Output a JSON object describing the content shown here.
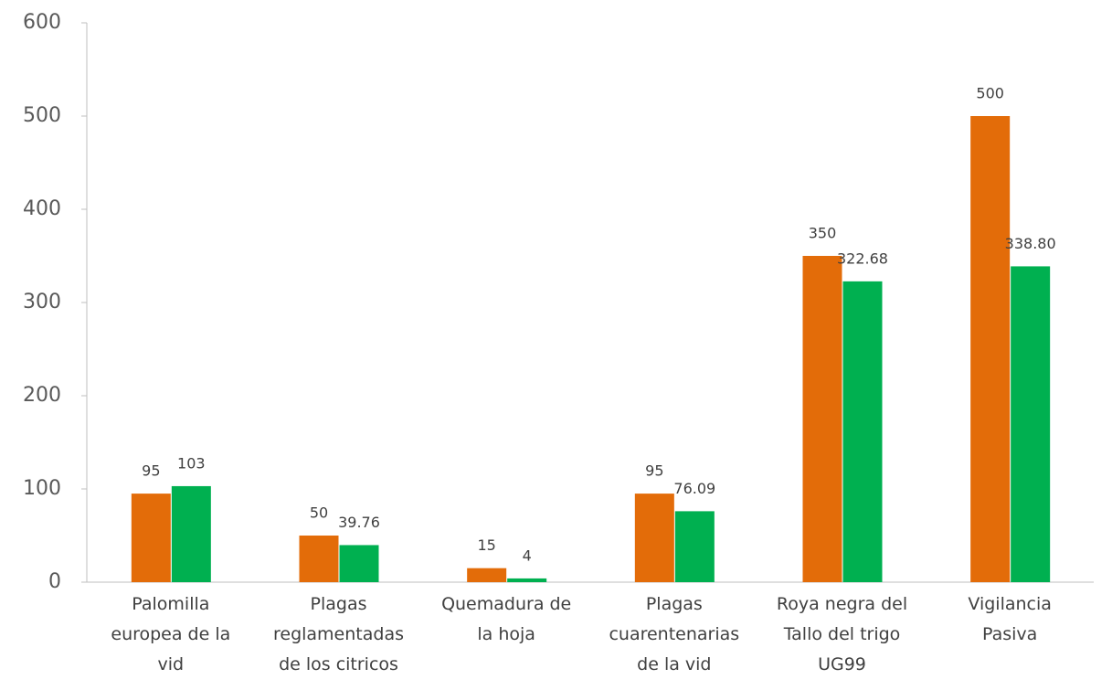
{
  "chart_data": {
    "type": "bar",
    "categories": [
      "Palomilla\neuropea de la\nvid",
      "Plagas\nreglamentadas\nde los citricos",
      "Quemadura de\nla hoja",
      "Plagas\ncuarentenarias\nde la vid",
      "Roya negra del\nTallo del trigo\nUG99",
      "Vigilancia\nPasiva"
    ],
    "series": [
      {
        "color": "#e36c09",
        "values": [
          95,
          50,
          15,
          95,
          350,
          500
        ]
      },
      {
        "color": "#00b050",
        "values": [
          103,
          39.76,
          4,
          76.09,
          322.68,
          338.8
        ],
        "value_labels": [
          "103",
          "39.76",
          "4",
          "76.09",
          "322.68",
          "338.80"
        ]
      }
    ],
    "ylim": [
      0,
      600
    ],
    "yticks": [
      0,
      100,
      200,
      300,
      400,
      500,
      600
    ],
    "grid": false
  }
}
